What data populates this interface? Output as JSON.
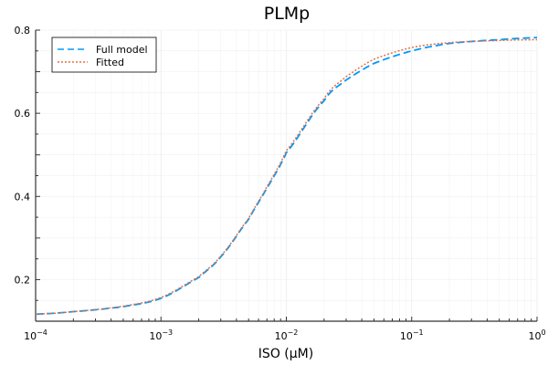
{
  "chart_data": {
    "type": "line",
    "title": "PLMp",
    "xlabel": "ISO (μM)",
    "ylabel": "",
    "xscale": "log",
    "xlim": [
      0.0001,
      1
    ],
    "ylim": [
      0.1,
      0.8
    ],
    "xticks": [
      "10^-4",
      "10^-3",
      "10^-2",
      "10^-1",
      "10^0"
    ],
    "yticks": [
      "0.2",
      "0.4",
      "0.6",
      "0.8"
    ],
    "grid": true,
    "legend_position": "top-left",
    "x": [
      0.0001,
      0.0002,
      0.0005,
      0.001,
      0.002,
      0.003,
      0.005,
      0.007,
      0.01,
      0.02,
      0.03,
      0.05,
      0.1,
      0.2,
      0.5,
      1.0
    ],
    "series": [
      {
        "name": "Full model",
        "style": "dashed",
        "color": "#009AFA",
        "values": [
          0.117,
          0.123,
          0.135,
          0.155,
          0.205,
          0.255,
          0.345,
          0.42,
          0.505,
          0.63,
          0.68,
          0.72,
          0.75,
          0.768,
          0.777,
          0.782
        ]
      },
      {
        "name": "Fitted",
        "style": "dotted",
        "color": "#E36F47",
        "values": [
          0.117,
          0.123,
          0.136,
          0.157,
          0.207,
          0.257,
          0.347,
          0.423,
          0.51,
          0.635,
          0.688,
          0.73,
          0.758,
          0.77,
          0.775,
          0.777
        ]
      }
    ]
  },
  "plot": {
    "title": "PLMp",
    "xlabel": "ISO (μM)",
    "legend": [
      {
        "label": "Full model"
      },
      {
        "label": "Fitted"
      }
    ],
    "yticklabels": [
      "0.8",
      "0.6",
      "0.4",
      "0.2"
    ]
  }
}
